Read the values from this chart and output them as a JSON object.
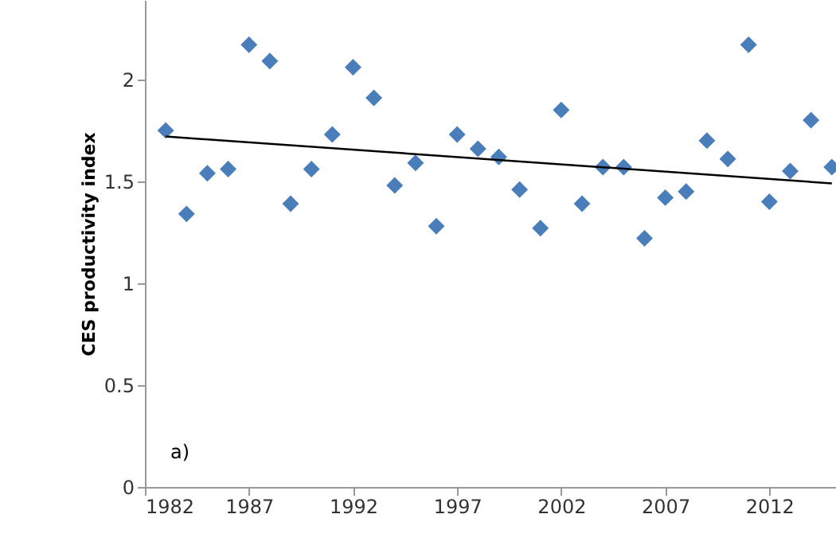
{
  "chart_data": {
    "type": "scatter",
    "ylabel": "CES productivity index",
    "grid": false,
    "xlim": [
      1982,
      2015.2
    ],
    "xticks": [
      1982,
      1987,
      1992,
      1997,
      2002,
      2007,
      2012
    ],
    "ylim": [
      0,
      2.39
    ],
    "yticks": [
      0,
      0.5,
      1,
      1.5,
      2
    ],
    "annotations": [
      "a)"
    ],
    "series": [
      {
        "color": "#4a7ebb",
        "marker": "diamond",
        "x": [
          1983,
          1984,
          1985,
          1986,
          1987,
          1988,
          1989,
          1990,
          1991,
          1992,
          1993,
          1994,
          1995,
          1996,
          1997,
          1998,
          1999,
          2000,
          2001,
          2002,
          2003,
          2004,
          2005,
          2006,
          2007,
          2008,
          2009,
          2010,
          2011,
          2012,
          2013,
          2014,
          2015
        ],
        "values": [
          1.75,
          1.34,
          1.54,
          1.56,
          2.17,
          2.09,
          1.39,
          1.56,
          1.73,
          2.06,
          1.91,
          1.48,
          1.59,
          1.28,
          1.73,
          1.66,
          1.62,
          1.46,
          1.27,
          1.85,
          1.39,
          1.57,
          1.57,
          1.22,
          1.42,
          1.45,
          1.7,
          1.61,
          2.17,
          1.4,
          1.55,
          1.8,
          1.57
        ]
      },
      {
        "type": "line",
        "color": "#000000",
        "x": [
          1983,
          2015
        ],
        "values": [
          1.72,
          1.49
        ]
      }
    ]
  }
}
